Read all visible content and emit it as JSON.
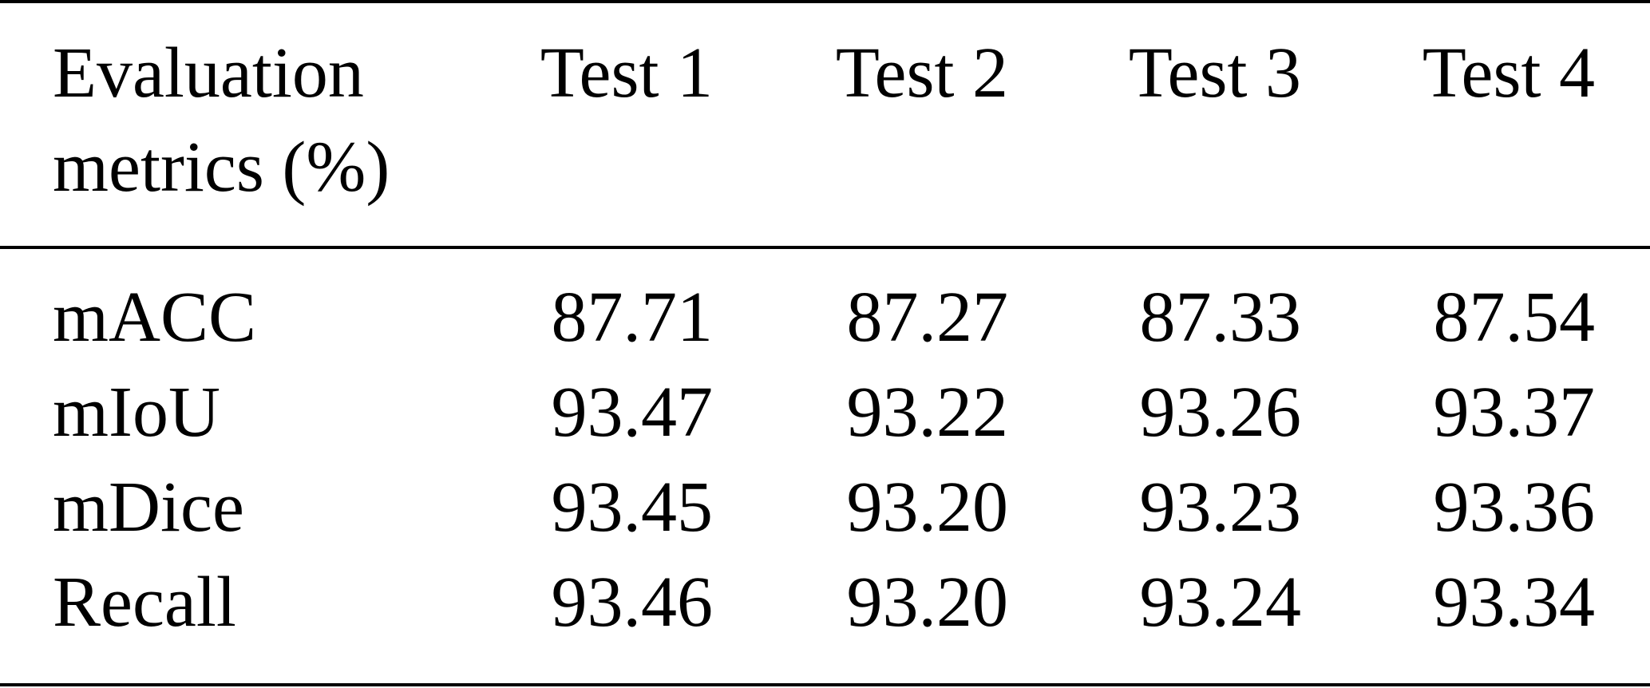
{
  "table": {
    "header": [
      "Evaluation metrics (%)",
      "Test 1",
      "Test 2",
      "Test 3",
      "Test 4"
    ],
    "rows": [
      [
        "mACC",
        "87.71",
        "87.27",
        "87.33",
        "87.54"
      ],
      [
        "mIoU",
        "93.47",
        "93.22",
        "93.26",
        "93.37"
      ],
      [
        "mDice",
        "93.45",
        "93.20",
        "93.23",
        "93.36"
      ],
      [
        "Recall",
        "93.46",
        "93.20",
        "93.24",
        "93.34"
      ]
    ]
  }
}
